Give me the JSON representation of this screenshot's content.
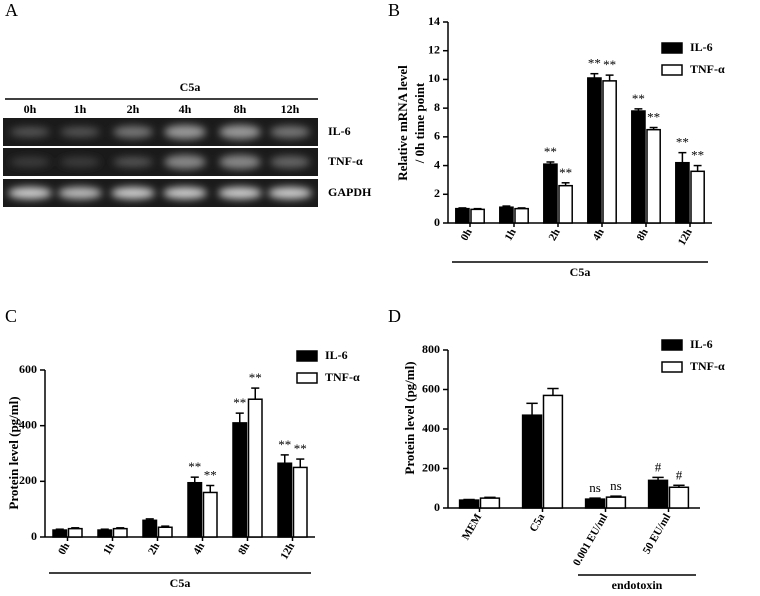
{
  "panel_labels": [
    "A",
    "B",
    "C",
    "D"
  ],
  "gel": {
    "title": "C5a",
    "lanes": [
      "0h",
      "1h",
      "2h",
      "4h",
      "8h",
      "12h"
    ],
    "rows": [
      "IL-6",
      "TNF-α",
      "GAPDH"
    ]
  },
  "chart_data": [
    {
      "type": "bar",
      "y_label": [
        "Relative mRNA level",
        "/ 0h time point"
      ],
      "x_group_label": "C5a",
      "categories": [
        "0h",
        "1h",
        "2h",
        "4h",
        "8h",
        "12h"
      ],
      "series": [
        {
          "name": "IL-6",
          "color": "#000000",
          "values": [
            1.0,
            1.1,
            4.1,
            10.1,
            7.8,
            4.2
          ],
          "errors": [
            0.05,
            0.08,
            0.15,
            0.3,
            0.15,
            0.7
          ],
          "annotations": [
            null,
            null,
            "**",
            "**",
            "**",
            "**"
          ]
        },
        {
          "name": "TNF-α",
          "color": "#ffffff",
          "values": [
            0.95,
            1.0,
            2.6,
            9.9,
            6.5,
            3.6
          ],
          "errors": [
            0.05,
            0.05,
            0.2,
            0.4,
            0.15,
            0.4
          ],
          "annotations": [
            null,
            null,
            "**",
            "**",
            "**",
            "**"
          ]
        }
      ],
      "ylim": [
        0,
        14
      ],
      "yticks": [
        0,
        2,
        4,
        6,
        8,
        10,
        12,
        14
      ],
      "legend": "upper right"
    },
    {
      "type": "bar",
      "y_label": [
        "Protein level (pg/ml)"
      ],
      "x_group_label": "C5a",
      "categories": [
        "0h",
        "1h",
        "2h",
        "4h",
        "8h",
        "12h"
      ],
      "series": [
        {
          "name": "IL-6",
          "color": "#000000",
          "values": [
            25,
            25,
            60,
            195,
            410,
            265
          ],
          "errors": [
            3,
            3,
            5,
            20,
            35,
            30
          ],
          "annotations": [
            null,
            null,
            null,
            "**",
            "**",
            "**"
          ]
        },
        {
          "name": "TNF-α",
          "color": "#ffffff",
          "values": [
            30,
            30,
            35,
            160,
            495,
            250
          ],
          "errors": [
            3,
            3,
            4,
            25,
            40,
            30
          ],
          "annotations": [
            null,
            null,
            null,
            "**",
            "**",
            "**"
          ]
        }
      ],
      "ylim": [
        0,
        600
      ],
      "yticks": [
        0,
        200,
        400,
        600
      ],
      "legend": "upper right"
    },
    {
      "type": "bar",
      "y_label": [
        "Protein level (pg/ml)"
      ],
      "x_group_label": "endotoxin",
      "categories": [
        "MEM",
        "C5a",
        "0.001 EU/ml",
        "50 EU/ml"
      ],
      "series": [
        {
          "name": "IL-6",
          "color": "#000000",
          "values": [
            40,
            470,
            45,
            140
          ],
          "errors": [
            3,
            60,
            5,
            15
          ],
          "annotations": [
            null,
            null,
            "ns",
            "#"
          ]
        },
        {
          "name": "TNF-α",
          "color": "#ffffff",
          "values": [
            50,
            570,
            55,
            105
          ],
          "errors": [
            4,
            35,
            5,
            10
          ],
          "annotations": [
            null,
            null,
            "ns",
            "#"
          ]
        }
      ],
      "ylim": [
        0,
        800
      ],
      "yticks": [
        0,
        200,
        400,
        600,
        800
      ],
      "legend": "upper right"
    }
  ]
}
